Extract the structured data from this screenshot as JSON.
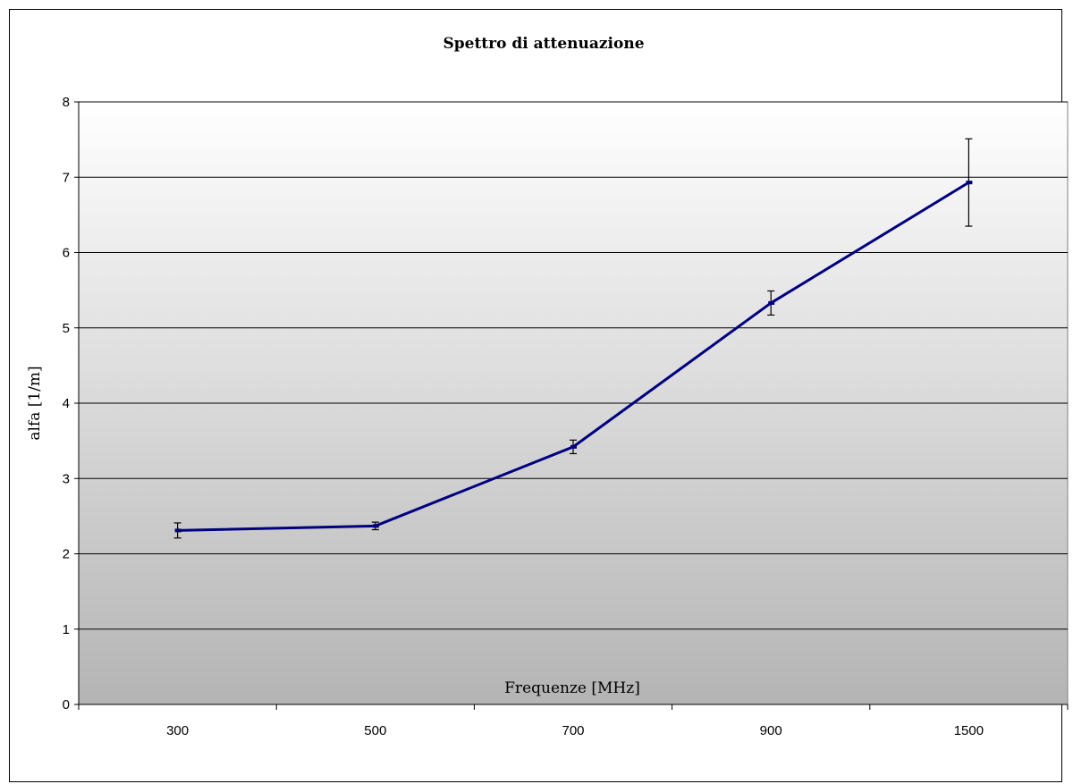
{
  "chart_data": {
    "type": "line",
    "title": "Spettro di attenuazione",
    "xlabel": "Frequenze [MHz]",
    "ylabel": "alfa [1/m]",
    "categories": [
      "300",
      "500",
      "700",
      "900",
      "1500"
    ],
    "ylim": [
      0,
      8
    ],
    "yticks": [
      0,
      1,
      2,
      3,
      4,
      5,
      6,
      7,
      8
    ],
    "grid": true,
    "legend": "none",
    "series": [
      {
        "values": [
          2.31,
          2.37,
          3.42,
          5.33,
          6.93
        ],
        "errors": [
          0.1,
          0.05,
          0.09,
          0.16,
          0.58
        ],
        "color": "#000080"
      }
    ],
    "plot_background": {
      "top": "#ffffff",
      "bottom": "#b4b4b4"
    }
  }
}
